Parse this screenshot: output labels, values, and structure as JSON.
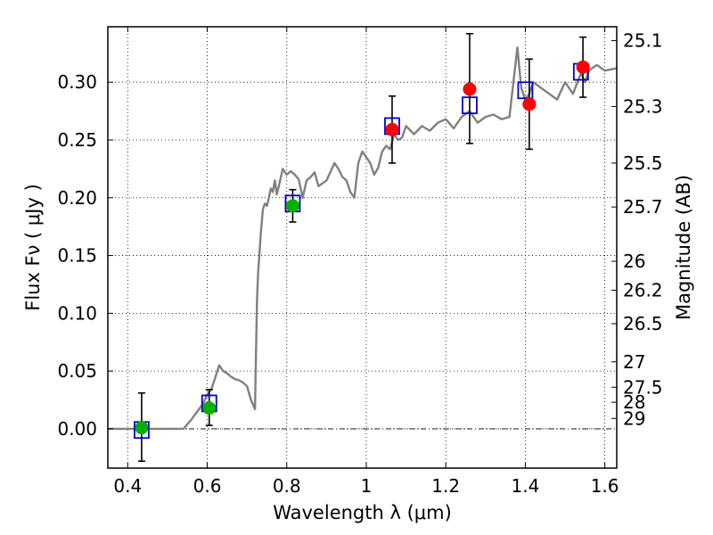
{
  "chart_data": {
    "type": "line",
    "title": "",
    "xlabel": "Wavelength  λ (μm)",
    "ylabel": "Flux  Fν  ( μJy )",
    "y2label": "Magnitude (AB)",
    "xlim": [
      0.35,
      1.63
    ],
    "ylim": [
      -0.034,
      0.348
    ],
    "grid": true,
    "x_ticks": [
      0.4,
      0.6,
      0.8,
      1.0,
      1.2,
      1.4,
      1.6
    ],
    "x_tick_labels": [
      "0.4",
      "0.6",
      "0.8",
      "1",
      "1.2",
      "1.4",
      "1.6"
    ],
    "y_ticks": [
      0.0,
      0.05,
      0.1,
      0.15,
      0.2,
      0.25,
      0.3
    ],
    "y_tick_labels": [
      "0.00",
      "0.05",
      "0.10",
      "0.15",
      "0.20",
      "0.25",
      "0.30"
    ],
    "y2_ticks": [
      {
        "label": "25.1",
        "flux": 0.336
      },
      {
        "label": "25.3",
        "flux": 0.279
      },
      {
        "label": "25.5",
        "flux": 0.23
      },
      {
        "label": "25.7",
        "flux": 0.192
      },
      {
        "label": "26",
        "flux": 0.145
      },
      {
        "label": "26.2",
        "flux": 0.12
      },
      {
        "label": "26.5",
        "flux": 0.091
      },
      {
        "label": "27",
        "flux": 0.058
      },
      {
        "label": "27.5",
        "flux": 0.036
      },
      {
        "label": "28",
        "flux": 0.023
      },
      {
        "label": "29",
        "flux": 0.009
      }
    ],
    "series": [
      {
        "type": "line",
        "color": "#808080",
        "x": [
          0.35,
          0.54,
          0.56,
          0.575,
          0.59,
          0.6,
          0.61,
          0.62,
          0.63,
          0.64,
          0.65,
          0.66,
          0.67,
          0.68,
          0.69,
          0.7,
          0.71,
          0.72,
          0.725,
          0.728,
          0.735,
          0.74,
          0.745,
          0.75,
          0.755,
          0.76,
          0.765,
          0.77,
          0.775,
          0.78,
          0.79,
          0.8,
          0.81,
          0.82,
          0.83,
          0.84,
          0.85,
          0.86,
          0.87,
          0.88,
          0.9,
          0.92,
          0.93,
          0.94,
          0.95,
          0.96,
          0.97,
          0.98,
          0.99,
          1.0,
          1.01,
          1.02,
          1.03,
          1.04,
          1.05,
          1.06,
          1.07,
          1.08,
          1.09,
          1.1,
          1.12,
          1.14,
          1.16,
          1.18,
          1.2,
          1.22,
          1.24,
          1.26,
          1.28,
          1.3,
          1.32,
          1.34,
          1.36,
          1.38,
          1.39,
          1.4,
          1.41,
          1.42,
          1.44,
          1.46,
          1.48,
          1.5,
          1.52,
          1.54,
          1.55,
          1.56,
          1.58,
          1.6,
          1.63
        ],
        "y": [
          0.0,
          0.0,
          0.008,
          0.015,
          0.022,
          0.03,
          0.034,
          0.044,
          0.055,
          0.05,
          0.048,
          0.045,
          0.043,
          0.042,
          0.04,
          0.037,
          0.025,
          0.017,
          0.11,
          0.135,
          0.17,
          0.19,
          0.195,
          0.193,
          0.2,
          0.208,
          0.205,
          0.215,
          0.203,
          0.21,
          0.225,
          0.22,
          0.223,
          0.22,
          0.216,
          0.2,
          0.215,
          0.218,
          0.222,
          0.21,
          0.215,
          0.23,
          0.225,
          0.218,
          0.215,
          0.205,
          0.2,
          0.23,
          0.24,
          0.235,
          0.23,
          0.22,
          0.226,
          0.24,
          0.245,
          0.242,
          0.255,
          0.25,
          0.252,
          0.262,
          0.255,
          0.262,
          0.258,
          0.265,
          0.268,
          0.26,
          0.27,
          0.275,
          0.265,
          0.27,
          0.272,
          0.268,
          0.27,
          0.33,
          0.295,
          0.285,
          0.29,
          0.3,
          0.295,
          0.29,
          0.285,
          0.3,
          0.29,
          0.308,
          0.3,
          0.31,
          0.315,
          0.31,
          0.312
        ]
      },
      {
        "type": "errorbar",
        "color": "#000000",
        "x": [
          0.435,
          0.605,
          0.815,
          1.065,
          1.26,
          1.41,
          1.545
        ],
        "y": [
          0.001,
          0.018,
          0.193,
          0.259,
          0.294,
          0.281,
          0.313
        ],
        "yerr_low": [
          0.029,
          0.015,
          0.014,
          0.029,
          0.047,
          0.039,
          0.026
        ],
        "yerr_high": [
          0.03,
          0.016,
          0.014,
          0.029,
          0.048,
          0.039,
          0.026
        ]
      },
      {
        "type": "scatter",
        "marker": "open-square",
        "color": "#0000cc",
        "x": [
          0.435,
          0.605,
          0.815,
          1.065,
          1.26,
          1.4,
          1.54
        ],
        "y": [
          -0.001,
          0.022,
          0.195,
          0.262,
          0.28,
          0.293,
          0.309
        ]
      },
      {
        "type": "scatter",
        "marker": "filled-circle",
        "color": "#00b000",
        "x": [
          0.435,
          0.605,
          0.815
        ],
        "y": [
          0.001,
          0.018,
          0.193
        ]
      },
      {
        "type": "scatter",
        "marker": "filled-circle",
        "color": "#ff0000",
        "x": [
          1.065,
          1.26,
          1.41,
          1.545
        ],
        "y": [
          0.259,
          0.294,
          0.281,
          0.313
        ]
      }
    ]
  }
}
